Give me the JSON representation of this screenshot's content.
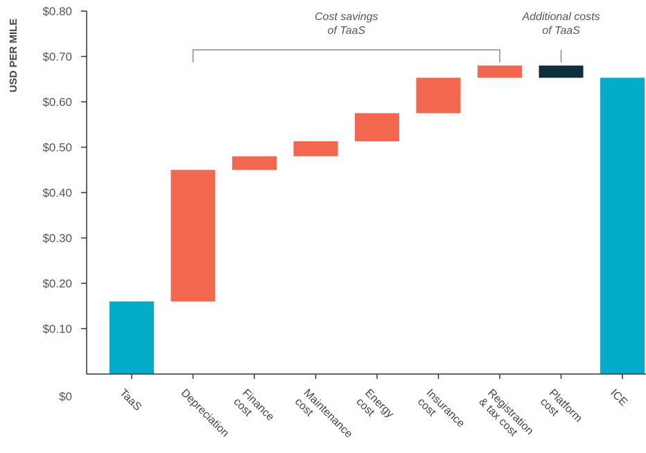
{
  "chart_data": {
    "type": "bar",
    "subtype": "waterfall",
    "ylabel": "USD PER MILE",
    "ylim": [
      0,
      0.8
    ],
    "yticks": [
      "$0",
      "$0.10",
      "$0.20",
      "$0.30",
      "$0.40",
      "$0.50",
      "$0.60",
      "$0.70",
      "$0.80"
    ],
    "categories": [
      [
        "TaaS"
      ],
      [
        "Depreciation"
      ],
      [
        "Finance",
        "cost"
      ],
      [
        "Maintenance",
        "cost"
      ],
      [
        "Energy",
        "cost"
      ],
      [
        "Insurance",
        "cost"
      ],
      [
        "Registration",
        "& tax cost"
      ],
      [
        "Platform",
        "cost"
      ],
      [
        "ICE"
      ]
    ],
    "bars": [
      {
        "kind": "total",
        "start": 0,
        "end": 0.16
      },
      {
        "kind": "saving",
        "start": 0.16,
        "end": 0.45
      },
      {
        "kind": "saving",
        "start": 0.45,
        "end": 0.48
      },
      {
        "kind": "saving",
        "start": 0.48,
        "end": 0.513
      },
      {
        "kind": "saving",
        "start": 0.513,
        "end": 0.575
      },
      {
        "kind": "saving",
        "start": 0.575,
        "end": 0.653
      },
      {
        "kind": "saving",
        "start": 0.653,
        "end": 0.68
      },
      {
        "kind": "additional",
        "start": 0.653,
        "end": 0.68
      },
      {
        "kind": "total",
        "start": 0,
        "end": 0.653
      }
    ],
    "colors": {
      "total": "#00acc8",
      "saving": "#f2674e",
      "additional": "#0d2e3d",
      "axis": "#333333",
      "bracket": "#888888"
    },
    "annotations": [
      {
        "lines": [
          "Cost savings",
          "of TaaS"
        ],
        "from": 1,
        "to": 6
      },
      {
        "lines": [
          "Additional costs",
          "of TaaS"
        ],
        "from": 7,
        "to": 7
      }
    ]
  }
}
